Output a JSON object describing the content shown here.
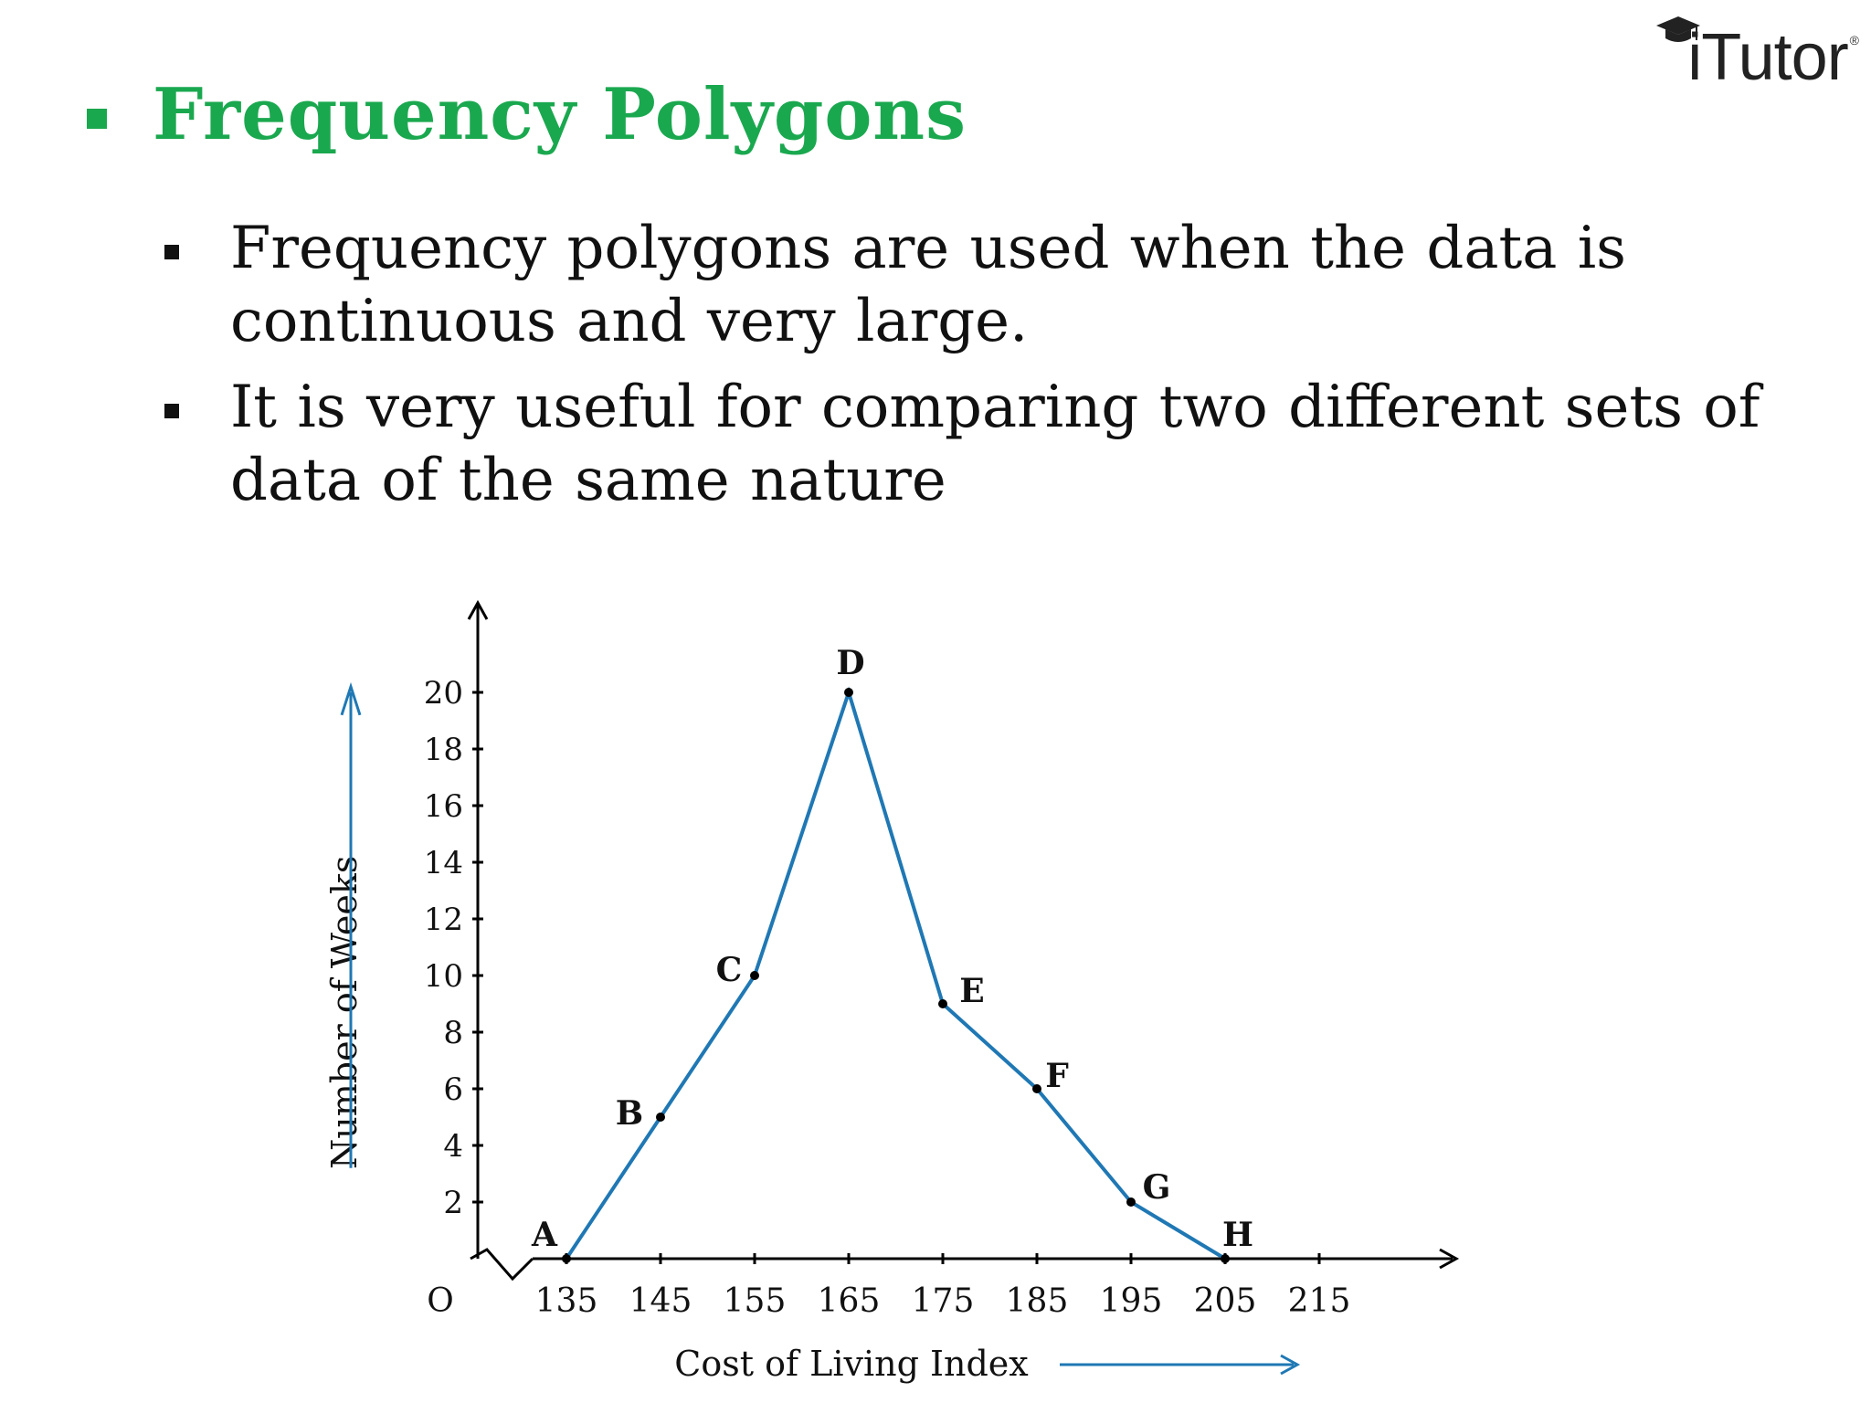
{
  "logo": {
    "text": "iTutor",
    "mark": "®",
    "icon": "graduation-cap-icon"
  },
  "title": "Frequency Polygons",
  "bullets": [
    "Frequency polygons are used   when the data is continuous and very large.",
    "It is very useful for comparing two different sets of data of the same nature"
  ],
  "colors": {
    "title": "#1aa84f",
    "line": "#1f78b4",
    "arrow": "#1f78b4"
  },
  "chart_data": {
    "type": "line",
    "xlabel": "Cost of Living Index",
    "ylabel": "Number of Weeks",
    "origin_label": "O",
    "x_ticks": [
      135,
      145,
      155,
      165,
      175,
      185,
      195,
      205,
      215
    ],
    "y_ticks": [
      2,
      4,
      6,
      8,
      10,
      12,
      14,
      16,
      18,
      20
    ],
    "xlim": [
      125,
      230
    ],
    "ylim": [
      0,
      22
    ],
    "axis_break": true,
    "grid": false,
    "series": [
      {
        "points": [
          {
            "label": "A",
            "x": 135,
            "y": 0
          },
          {
            "label": "B",
            "x": 145,
            "y": 5
          },
          {
            "label": "C",
            "x": 155,
            "y": 10
          },
          {
            "label": "D",
            "x": 165,
            "y": 20
          },
          {
            "label": "E",
            "x": 175,
            "y": 9
          },
          {
            "label": "F",
            "x": 185,
            "y": 6
          },
          {
            "label": "G",
            "x": 195,
            "y": 2
          },
          {
            "label": "H",
            "x": 205,
            "y": 0
          }
        ]
      }
    ]
  }
}
